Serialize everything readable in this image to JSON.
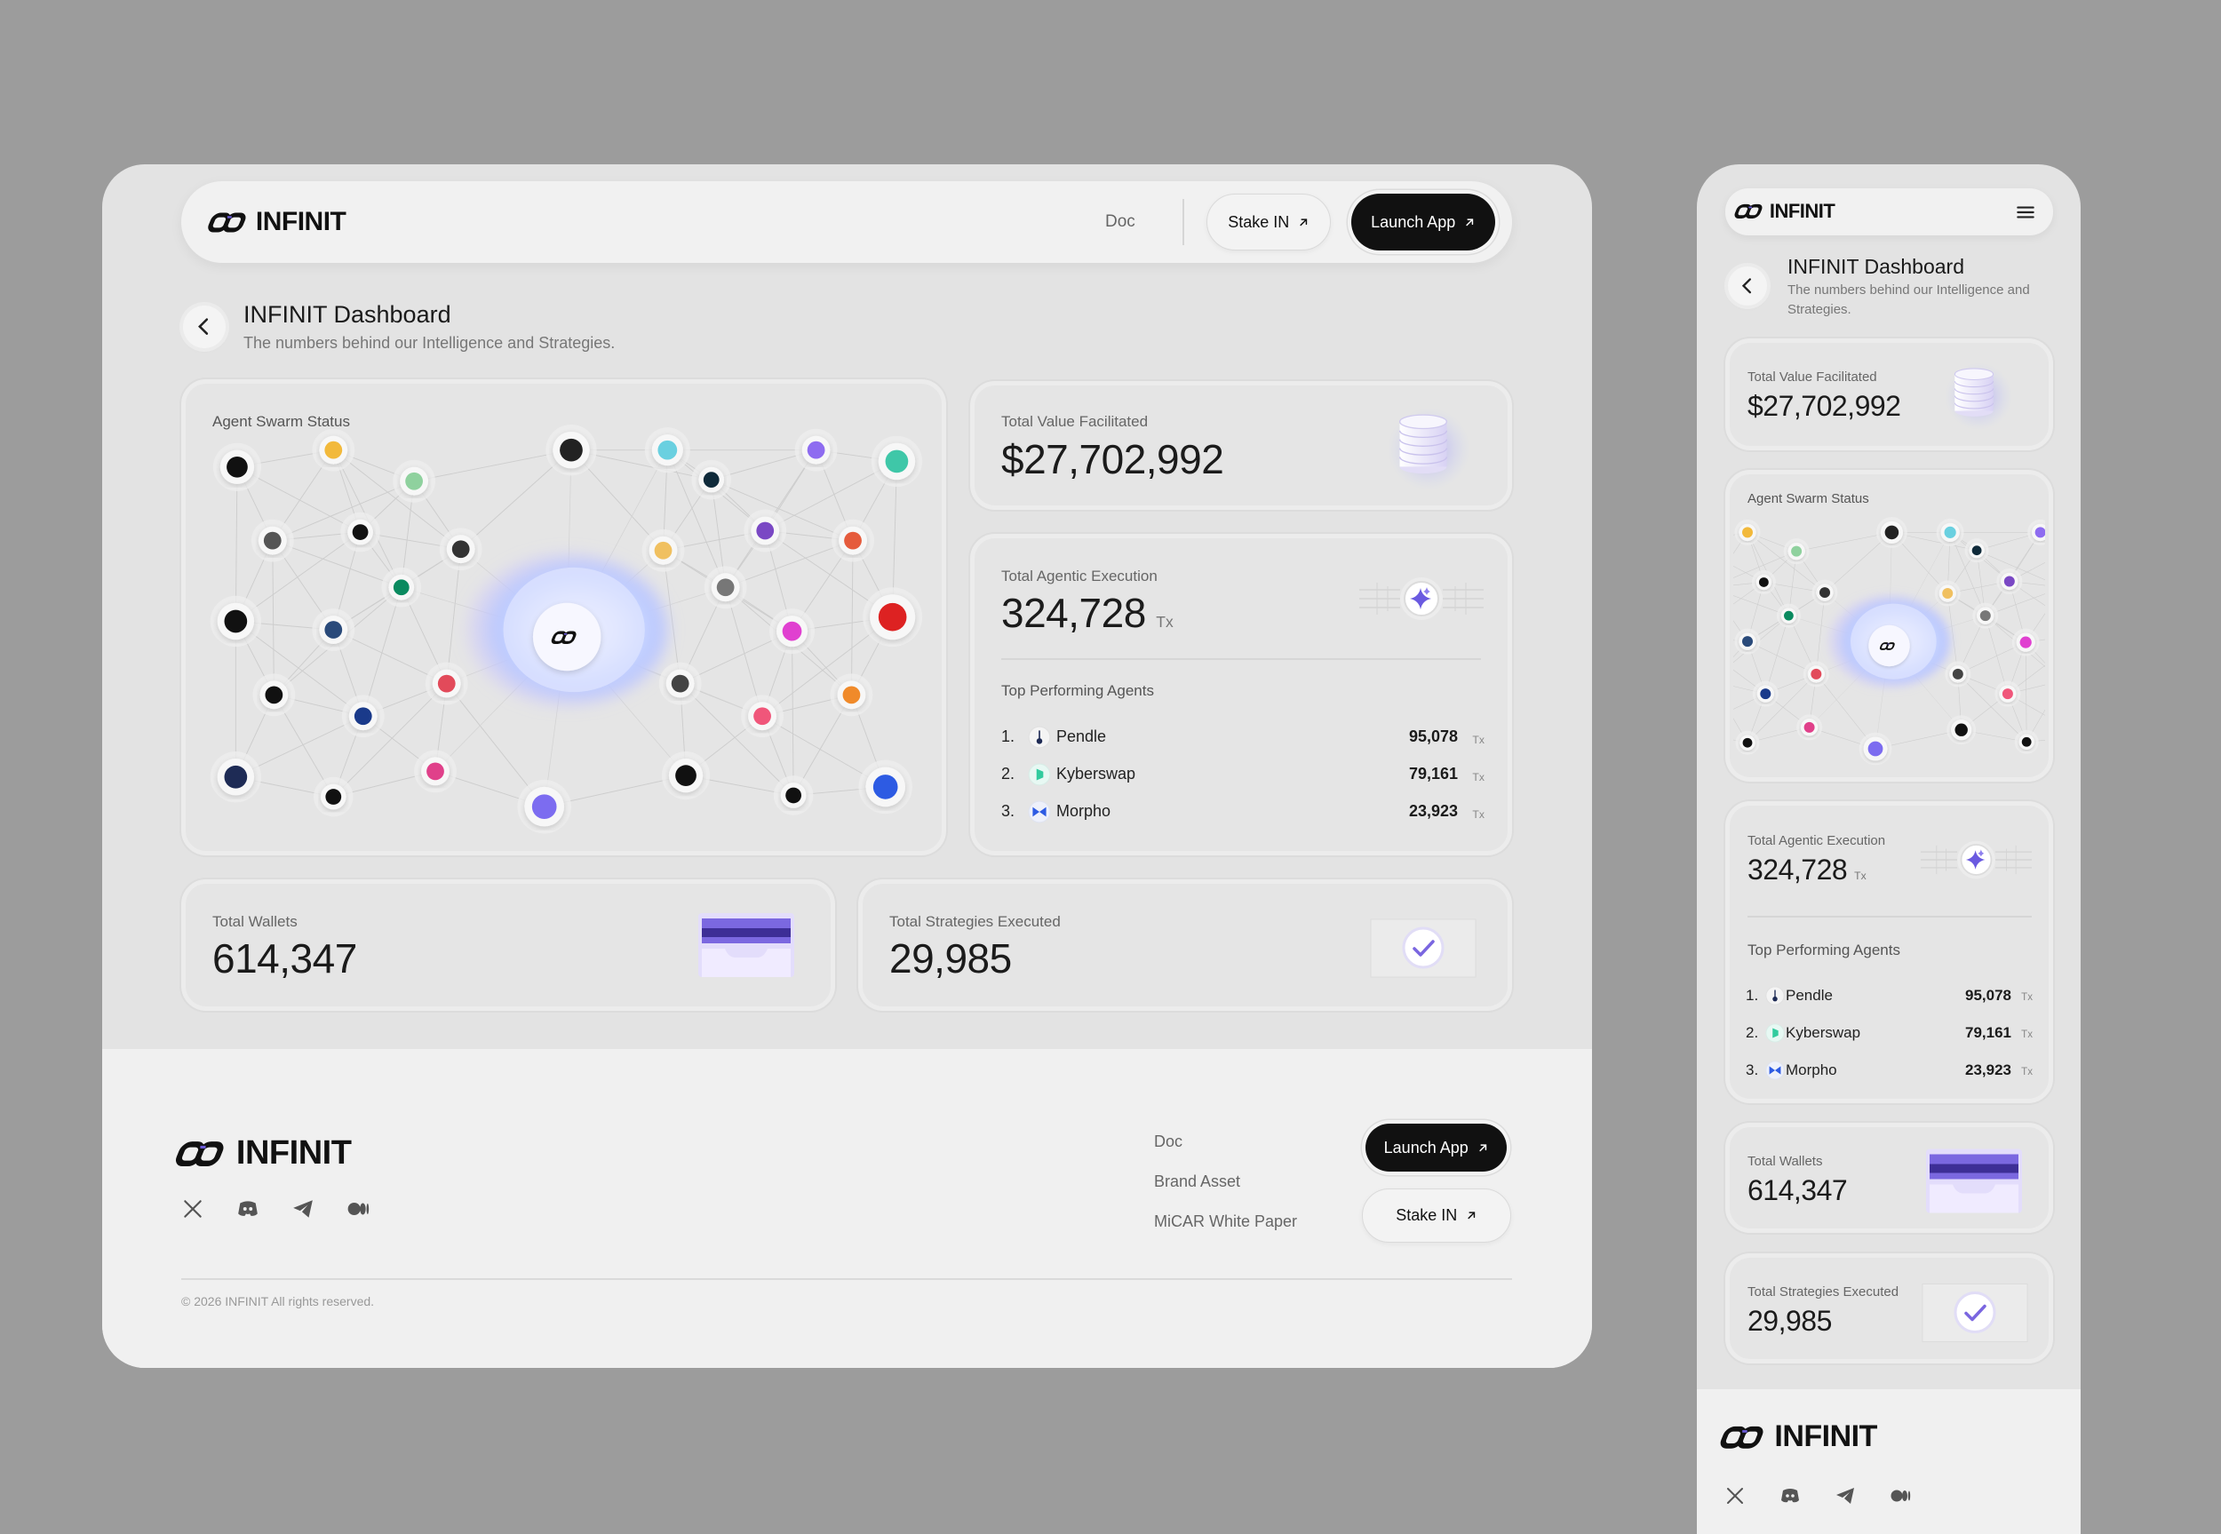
{
  "brand": "INFINIT",
  "nav": {
    "doc": "Doc",
    "stake": "Stake IN",
    "launch": "Launch App"
  },
  "header": {
    "title": "INFINIT Dashboard",
    "subtitle": "The numbers behind our Intelligence and Strategies."
  },
  "tx_unit": "Tx",
  "swarm": {
    "title": "Agent Swarm Status"
  },
  "stats": {
    "total_value": {
      "label": "Total Value Facilitated",
      "value": "$27,702,992"
    },
    "agentic_execution": {
      "label": "Total Agentic Execution",
      "value": "324,728"
    },
    "wallets": {
      "label": "Total Wallets",
      "value": "614,347"
    },
    "strategies": {
      "label": "Total Strategies Executed",
      "value": "29,985"
    }
  },
  "top_agents": {
    "title": "Top Performing Agents",
    "rows": [
      {
        "rank": "1.",
        "name": "Pendle",
        "value": "95,078"
      },
      {
        "rank": "2.",
        "name": "Kyberswap",
        "value": "79,161"
      },
      {
        "rank": "3.",
        "name": "Morpho",
        "value": "23,923"
      }
    ]
  },
  "footer": {
    "links": [
      "Doc",
      "Brand Asset",
      "MiCAR White Paper"
    ],
    "launch": "Launch App",
    "stake": "Stake IN",
    "copyright": "© 2026 INFINIT All rights reserved."
  }
}
